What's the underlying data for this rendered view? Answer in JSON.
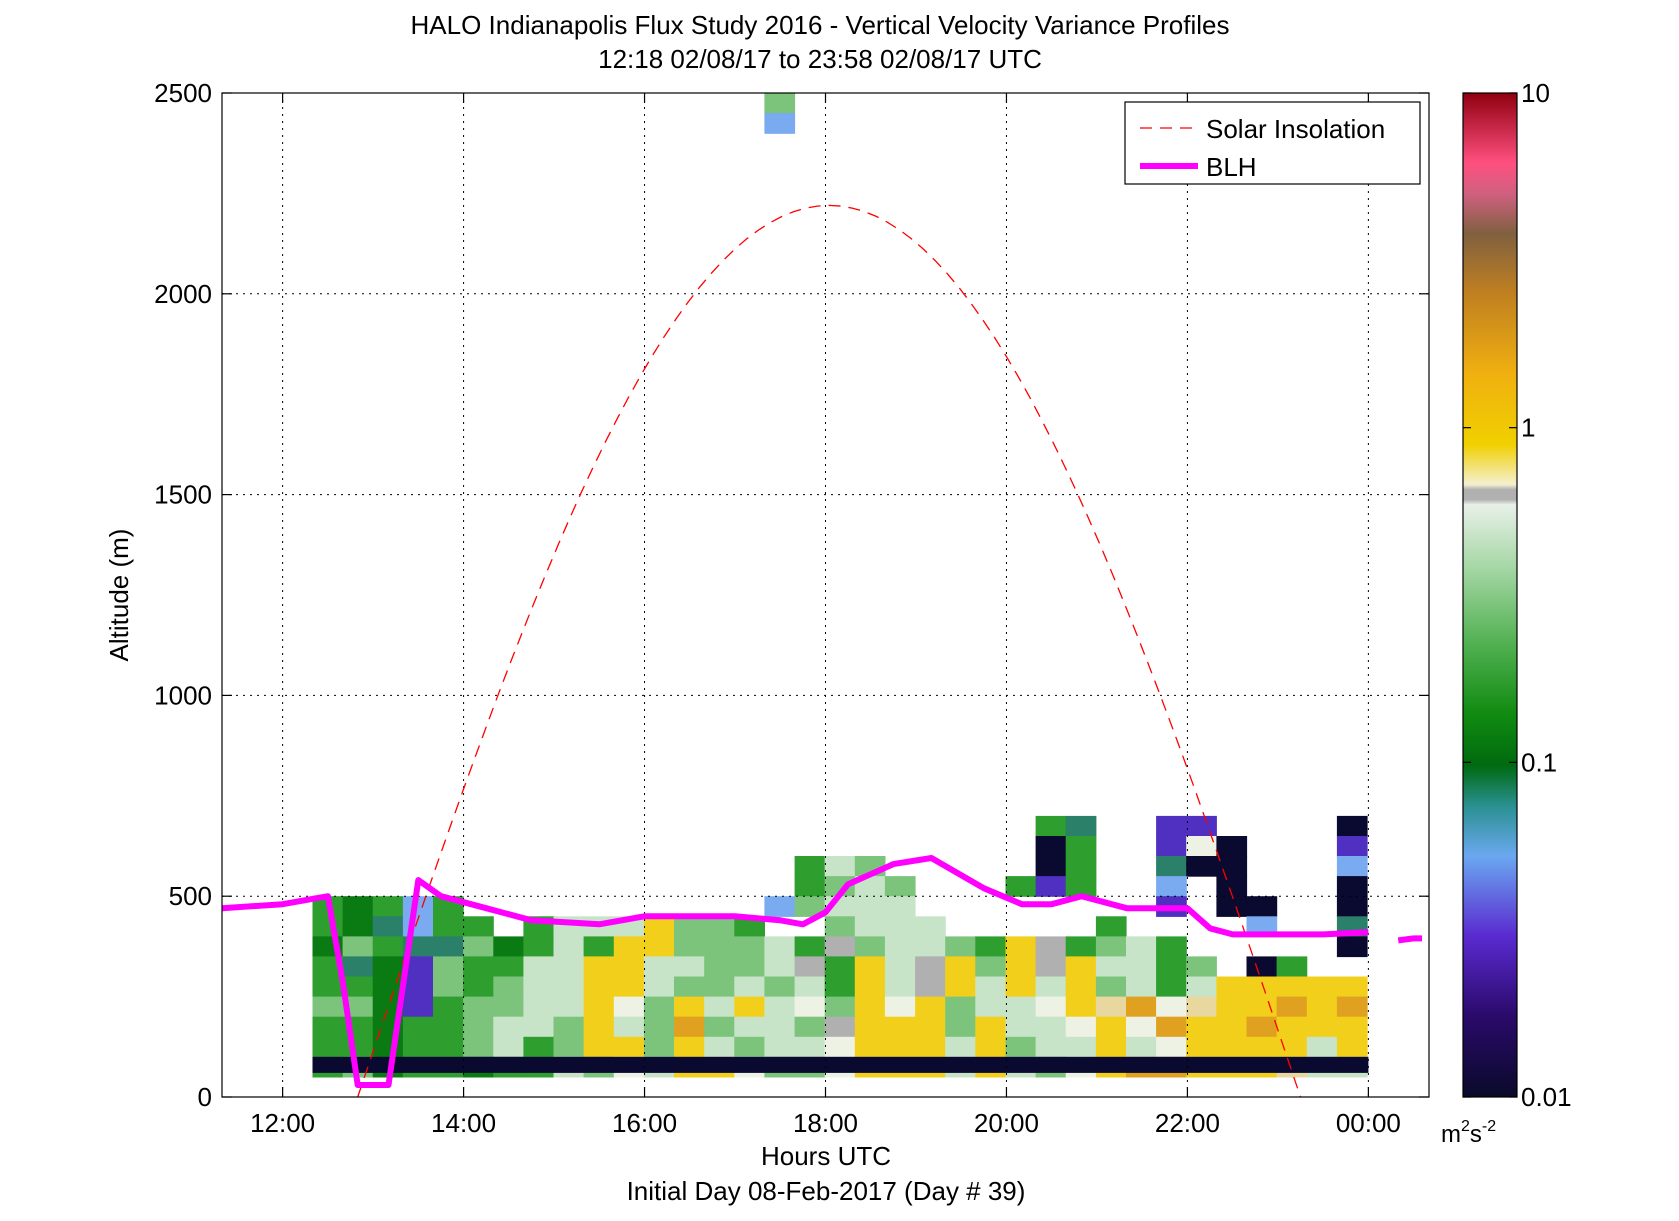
{
  "chart_data": {
    "type": "heatmap",
    "title": "HALO Indianapolis Flux Study 2016 - Vertical Velocity Variance Profiles",
    "subtitle": "12:18 02/08/17 to 23:58 02/08/17  UTC",
    "xlabel": "Hours UTC",
    "xlabel2": "Initial Day 08-Feb-2017 (Day # 39)",
    "ylabel": "Altitude (m)",
    "xlim": [
      11.33,
      24.67
    ],
    "ylim": [
      0,
      2500
    ],
    "x_ticks": [
      12,
      14,
      16,
      18,
      20,
      22,
      24
    ],
    "x_tick_labels": [
      "12:00",
      "14:00",
      "16:00",
      "18:00",
      "20:00",
      "22:00",
      "00:00"
    ],
    "y_ticks": [
      0,
      500,
      1000,
      1500,
      2000,
      2500
    ],
    "y_tick_labels": [
      "0",
      "500",
      "1000",
      "1500",
      "2000",
      "2500"
    ],
    "grid": true,
    "legend_position": "top-right",
    "legend": [
      "Solar Insolation",
      "BLH"
    ],
    "colorbar": {
      "scale": "log",
      "range": [
        0.01,
        10
      ],
      "tick_labels": [
        "0.01",
        "0.1",
        "1",
        "10"
      ],
      "unit": "m²s⁻²",
      "unit_base": "m",
      "unit_sup1": "2",
      "unit_mid": "s",
      "unit_sup2": "-2"
    },
    "heatmap": {
      "time_start": 12.33,
      "time_step": 0.333,
      "alt_levels_top_down": [
        2475,
        2425,
        975,
        875,
        825,
        725,
        675,
        625,
        575,
        525,
        475,
        425,
        375,
        325,
        275,
        225,
        175,
        125,
        75
      ],
      "legend_codes": {
        "G": "green ~0.08",
        "L": "light green ~0.15",
        "P": "pale green ~0.25",
        "W": "white ~0.32",
        "Y": "yellow ~0.6",
        "O": "orange ~0.8",
        "T": "tan ~0.45",
        "S": "gray ~0.35",
        "D": "dark green ~0.06",
        "E": "teal ~0.05",
        "B": "light blue ~0.04",
        "V": "violet ~0.025",
        "N": "navy ~0.012",
        "X": "no data"
      },
      "rows": [
        "XXXXXXXXXXXXXXXLXXXXXXXXXXXXXXXXXXX",
        "XXXXXXXXXXXXXXXBXXXXXXXXXXXXXXXXXXX",
        "XXXXXXXXXXXXXXXXXXXXXXXXXXXXXXXXXXX",
        "XXXXXXXXXXXXXXXXXXXXXXXXXXXXXXXXXXX",
        "XXXXXXXXXXXXXXXXXXXXXXXXXXXXXXXXXXX",
        "XXXXXXXXXXXXXXXXXXXXXXXXXXXXXXXXXXX",
        "XXXXXXXXXXXXXXXXXXXXXXXXGEXXVVXXXXN",
        "XXXXXXXXXXXXXXXXXXXXXXXXNGXXVWNXXXV",
        "XXXXXXXXXXXXXXXXGPLXXXXXNGXXENNXXXB",
        "XXXXXXXXXXXXXXXXGLPLXXXGVGXXBXNXXXN",
        "GDGBGXXXXXXXXXXBLPPPXXXXXXXXVXNNXXN",
        "GDEBGGXGPPPYLLGXXLPPPXXXXXGXXXXBXXE",
        "DLGEELDGPGYYLLLPGSLPPLGYSGLPGXXXXXN",
        "GEDVLGGPPYYPPLLPSGYPSYLYSYPPGLXNGXX",
        "GGDVLGLPPYYPLLPLPGYPSYPYPYLPGPYYYYY",
        "LLDVGLLPPYWLYPYPWLYWYLPPWYTOWTYYOYO",
        "GGDGGLPPLYPLOLPPLSYYYLYPPWYWOYYOYYY",
        "GGDGGLPGLYYLYPLPPWYYYPYLPPYPWYYYYPY",
        "GLDGGDGGPLWPYYWLLWYYYPYPLWYOOYYYTPP"
      ]
    },
    "series": [
      {
        "name": "BLH",
        "color": "#ff00ff",
        "x": [
          11.33,
          12.0,
          12.5,
          12.67,
          12.83,
          13.17,
          13.5,
          13.75,
          14.25,
          14.75,
          15.5,
          16.0,
          16.5,
          17.0,
          17.5,
          17.75,
          18.0,
          18.25,
          18.75,
          19.17,
          19.75,
          20.17,
          20.5,
          20.83,
          21.33,
          22.0,
          22.25,
          22.5,
          23.0,
          23.5,
          24.0,
          24.33,
          24.5,
          24.67
        ],
        "y": [
          470,
          480,
          500,
          280,
          30,
          30,
          540,
          500,
          470,
          440,
          430,
          450,
          450,
          450,
          440,
          430,
          460,
          530,
          580,
          595,
          520,
          480,
          480,
          500,
          470,
          470,
          420,
          405,
          405,
          405,
          410,
          390,
          395,
          395
        ]
      },
      {
        "name": "Solar Insolation",
        "color": "#ff0000",
        "style": "dashed",
        "peak_time": 18.0,
        "peak_value": 2220,
        "start_time": 12.83,
        "end_time": 23.25
      }
    ]
  }
}
